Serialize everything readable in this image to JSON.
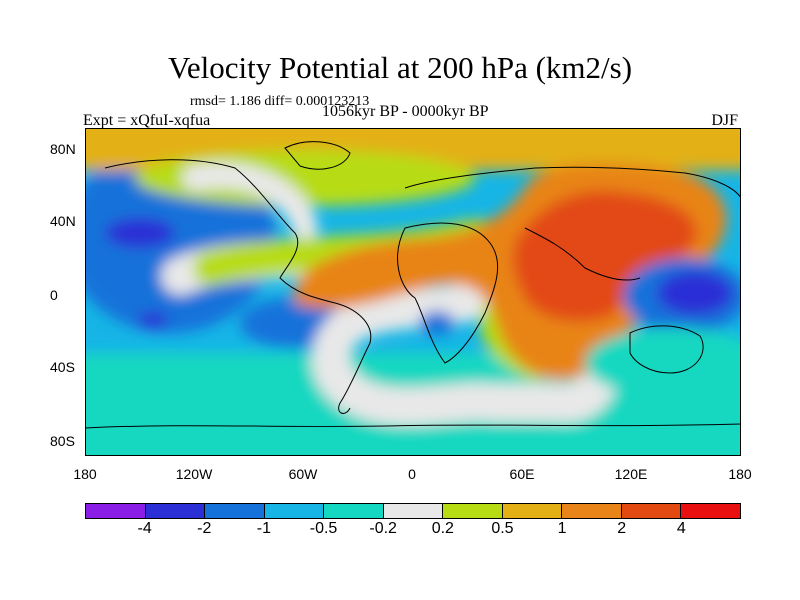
{
  "figure": {
    "title": "Velocity Potential at 200 hPa (km2/s)",
    "stats": "rmsd= 1.186 diff= 0.000123213",
    "left_label": "Expt = xQfuI-xqfua",
    "center_label": "1056kyr BP - 0000kyr BP",
    "right_label": "DJF"
  },
  "axes": {
    "lat_ticks": [
      "80N",
      "40N",
      "0",
      "40S",
      "80S"
    ],
    "lon_ticks": [
      "180",
      "120W",
      "60W",
      "0",
      "60E",
      "120E",
      "180"
    ]
  },
  "colorbar": {
    "colors": [
      "#8a1ee6",
      "#2c2ed6",
      "#1572da",
      "#16b5e6",
      "#14d8c1",
      "#e8e8e8",
      "#b7dc14",
      "#e3b016",
      "#e88418",
      "#e24a12",
      "#e81010"
    ],
    "labels": [
      "-4",
      "-2",
      "-1",
      "-0.5",
      "-0.2",
      "0.2",
      "0.5",
      "1",
      "2",
      "4"
    ]
  }
}
